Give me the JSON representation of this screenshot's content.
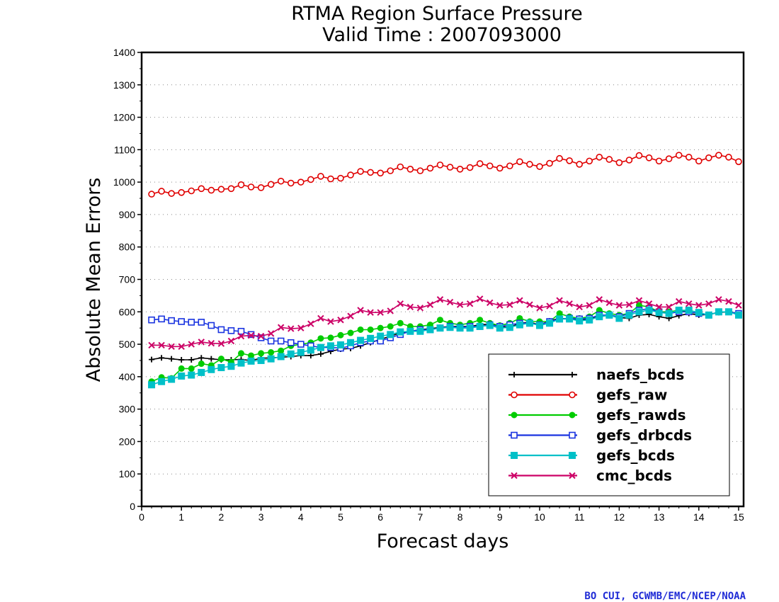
{
  "chart_data": {
    "type": "line",
    "title": "RTMA Region Surface Pressure",
    "subtitle": "Valid Time : 2007093000",
    "xlabel": "Forecast days",
    "ylabel": "Absolute Mean Errors",
    "xlim": [
      0,
      15.125
    ],
    "ylim": [
      0,
      1400
    ],
    "x_ticks": [
      "0",
      "1",
      "2",
      "3",
      "4",
      "5",
      "6",
      "7",
      "8",
      "9",
      "10",
      "11",
      "12",
      "13",
      "14",
      "15"
    ],
    "y_ticks": [
      "0",
      "100",
      "200",
      "300",
      "400",
      "500",
      "600",
      "700",
      "800",
      "900",
      "1000",
      "1100",
      "1200",
      "1300",
      "1400"
    ],
    "grid": "horizontal dotted",
    "legend_position": "lower-right",
    "x": [
      0.25,
      0.5,
      0.75,
      1.0,
      1.25,
      1.5,
      1.75,
      2.0,
      2.25,
      2.5,
      2.75,
      3.0,
      3.25,
      3.5,
      3.75,
      4.0,
      4.25,
      4.5,
      4.75,
      5.0,
      5.25,
      5.5,
      5.75,
      6.0,
      6.25,
      6.5,
      6.75,
      7.0,
      7.25,
      7.5,
      7.75,
      8.0,
      8.25,
      8.5,
      8.75,
      9.0,
      9.25,
      9.5,
      9.75,
      10.0,
      10.25,
      10.5,
      10.75,
      11.0,
      11.25,
      11.5,
      11.75,
      12.0,
      12.25,
      12.5,
      12.75,
      13.0,
      13.25,
      13.5,
      13.75,
      14.0,
      14.25,
      14.5,
      14.75,
      15.0
    ],
    "series": [
      {
        "name": "naefs_bcds",
        "color": "#000000",
        "marker": "plus",
        "values": [
          453,
          458,
          455,
          452,
          452,
          458,
          455,
          452,
          452,
          453,
          450,
          457,
          458,
          460,
          462,
          465,
          465,
          470,
          478,
          485,
          487,
          495,
          505,
          515,
          525,
          535,
          540,
          545,
          548,
          552,
          555,
          555,
          555,
          560,
          562,
          555,
          552,
          565,
          568,
          560,
          572,
          580,
          578,
          575,
          578,
          585,
          590,
          582,
          580,
          590,
          592,
          585,
          580,
          588,
          595,
          590,
          592,
          598,
          600,
          595
        ]
      },
      {
        "name": "gefs_raw",
        "color": "#e00000",
        "marker": "open-circle",
        "values": [
          963,
          972,
          965,
          968,
          973,
          980,
          975,
          978,
          980,
          992,
          985,
          983,
          993,
          1003,
          997,
          1000,
          1008,
          1018,
          1010,
          1012,
          1022,
          1033,
          1030,
          1028,
          1035,
          1047,
          1040,
          1035,
          1043,
          1053,
          1046,
          1040,
          1045,
          1057,
          1050,
          1043,
          1050,
          1063,
          1055,
          1048,
          1058,
          1073,
          1066,
          1055,
          1065,
          1077,
          1070,
          1060,
          1068,
          1082,
          1075,
          1065,
          1072,
          1083,
          1077,
          1065,
          1075,
          1083,
          1077,
          1063
        ]
      },
      {
        "name": "gefs_rawds",
        "color": "#00cc00",
        "marker": "filled-circle",
        "values": [
          385,
          398,
          395,
          425,
          425,
          440,
          435,
          455,
          445,
          472,
          465,
          472,
          475,
          480,
          495,
          500,
          505,
          518,
          520,
          528,
          535,
          545,
          545,
          550,
          555,
          565,
          555,
          555,
          560,
          575,
          565,
          560,
          565,
          575,
          565,
          558,
          565,
          580,
          570,
          570,
          570,
          595,
          585,
          580,
          585,
          605,
          595,
          590,
          595,
          620,
          615,
          600,
          600,
          605,
          600,
          595,
          590,
          600,
          600,
          595
        ]
      },
      {
        "name": "gefs_drbcds",
        "color": "#1a34e0",
        "marker": "open-square",
        "values": [
          575,
          578,
          573,
          570,
          568,
          568,
          558,
          545,
          542,
          540,
          530,
          520,
          510,
          510,
          505,
          500,
          495,
          490,
          490,
          488,
          495,
          505,
          510,
          510,
          520,
          530,
          540,
          545,
          545,
          550,
          555,
          552,
          555,
          555,
          560,
          555,
          560,
          565,
          565,
          560,
          570,
          578,
          580,
          578,
          580,
          590,
          590,
          585,
          595,
          605,
          610,
          600,
          595,
          600,
          600,
          595,
          590,
          600,
          600,
          595
        ]
      },
      {
        "name": "gefs_bcds",
        "color": "#00c0c8",
        "marker": "filled-square",
        "values": [
          375,
          385,
          392,
          402,
          405,
          413,
          422,
          428,
          432,
          442,
          448,
          450,
          455,
          462,
          470,
          475,
          482,
          490,
          495,
          498,
          505,
          512,
          518,
          525,
          530,
          538,
          540,
          540,
          545,
          550,
          552,
          550,
          550,
          555,
          558,
          550,
          552,
          560,
          565,
          558,
          565,
          578,
          578,
          572,
          575,
          585,
          590,
          580,
          590,
          600,
          605,
          598,
          595,
          605,
          605,
          598,
          590,
          600,
          600,
          590
        ]
      },
      {
        "name": "cmc_bcds",
        "color": "#cc0066",
        "marker": "x",
        "values": [
          497,
          497,
          493,
          493,
          500,
          507,
          503,
          502,
          510,
          525,
          527,
          525,
          533,
          552,
          548,
          550,
          563,
          580,
          570,
          575,
          587,
          605,
          598,
          598,
          603,
          625,
          615,
          612,
          622,
          638,
          630,
          622,
          625,
          640,
          628,
          620,
          622,
          635,
          622,
          612,
          618,
          635,
          625,
          615,
          620,
          638,
          628,
          620,
          622,
          635,
          625,
          615,
          615,
          632,
          625,
          620,
          625,
          638,
          632,
          620
        ]
      }
    ]
  },
  "credit": "BO CUI, GCWMB/EMC/NCEP/NOAA"
}
